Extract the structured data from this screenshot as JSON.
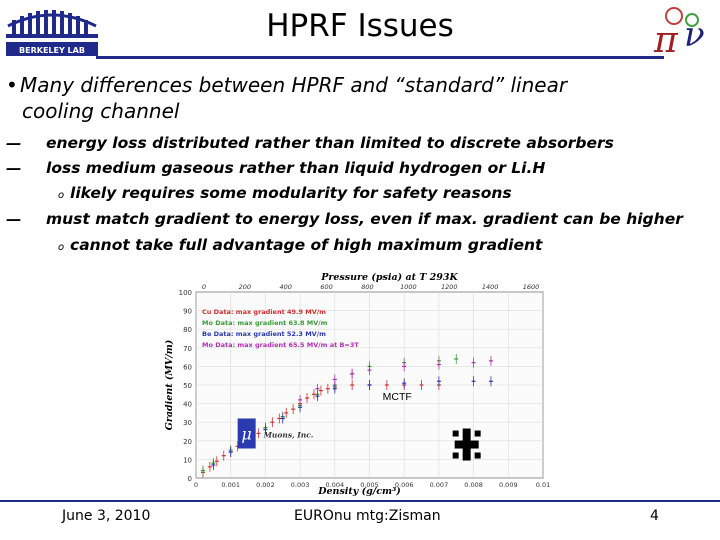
{
  "title": "HPRF Issues",
  "bullet1": {
    "line1": "Many differences between HPRF and “standard” linear",
    "line2": "cooling channel"
  },
  "items": [
    "energy loss distributed rather than limited to discrete absorbers",
    "loss medium gaseous rather than liquid hydrogen or Li.H",
    "likely requires some modularity for safety reasons",
    "must match gradient to energy loss, even if max. gradient can be higher",
    "cannot take full advantage of high maximum gradient"
  ],
  "logo_lbl": "BERKELEY LAB",
  "chart_data": {
    "type": "scatter",
    "title": "Pressure (psia) at T 293K",
    "xlabel": "Density (g/cm³)",
    "ylabel": "Gradient (MV/m)",
    "xlim": [
      0,
      0.01
    ],
    "ylim": [
      0,
      100
    ],
    "x_ticks": [
      "0",
      "0.001",
      "0.002",
      "0.003",
      "0.004",
      "0.005",
      "0.006",
      "0.007",
      "0.008",
      "0.009",
      "0.01"
    ],
    "y_ticks": [
      "0",
      "10",
      "20",
      "30",
      "40",
      "50",
      "60",
      "70",
      "80",
      "90",
      "100"
    ],
    "top_ticks": [
      "0",
      "200",
      "400",
      "600",
      "800",
      "1000",
      "1200",
      "1400",
      "1600"
    ],
    "legend": [
      "Cu Data: max gradient 49.9 MV/m",
      "Mo Data: max gradient 63.8 MV/m",
      "Be Data: max gradient 52.3 MV/m",
      "Mo Data: max gradient 65.5 MV/m at B=3T"
    ],
    "legend_colors": [
      "#d03030",
      "#3a9a3a",
      "#2a3ab0",
      "#b030b0"
    ],
    "series": [
      {
        "x": [
          0.0002,
          0.0004,
          0.0006,
          0.0008,
          0.001,
          0.0012,
          0.0014,
          0.0016,
          0.0018,
          0.002,
          0.0022,
          0.0024,
          0.0026,
          0.0028,
          0.003,
          0.0032,
          0.0034,
          0.0036,
          0.0038,
          0.004,
          0.0045,
          0.005,
          0.0055,
          0.006,
          0.0065,
          0.007
        ],
        "y": [
          3,
          6,
          9,
          12,
          14,
          17,
          19,
          22,
          24,
          27,
          30,
          32,
          35,
          37,
          40,
          43,
          45,
          47,
          48,
          49,
          50,
          50,
          50,
          50,
          50,
          50
        ]
      },
      {
        "x": [
          0.0002,
          0.0005,
          0.001,
          0.0015,
          0.002,
          0.0025,
          0.003,
          0.0035,
          0.004,
          0.0045,
          0.005,
          0.006,
          0.007,
          0.0075
        ],
        "y": [
          4,
          8,
          15,
          21,
          27,
          33,
          39,
          45,
          50,
          56,
          60,
          62,
          63,
          64
        ]
      },
      {
        "x": [
          0.0005,
          0.001,
          0.0015,
          0.002,
          0.0025,
          0.003,
          0.0035,
          0.004,
          0.005,
          0.006,
          0.007,
          0.008,
          0.0085
        ],
        "y": [
          7,
          14,
          20,
          26,
          32,
          38,
          44,
          48,
          50,
          51,
          52,
          52,
          52
        ]
      },
      {
        "x": [
          0.003,
          0.0035,
          0.004,
          0.0045,
          0.005,
          0.006,
          0.007,
          0.008,
          0.0085
        ],
        "y": [
          42,
          48,
          53,
          56,
          58,
          60,
          61,
          62,
          63
        ]
      }
    ],
    "annotation": "MCTF",
    "muons_label": "Muons, Inc."
  },
  "footer": {
    "date": "June 3, 2010",
    "event": "EUROnu mtg:Zisman",
    "page": "4"
  }
}
